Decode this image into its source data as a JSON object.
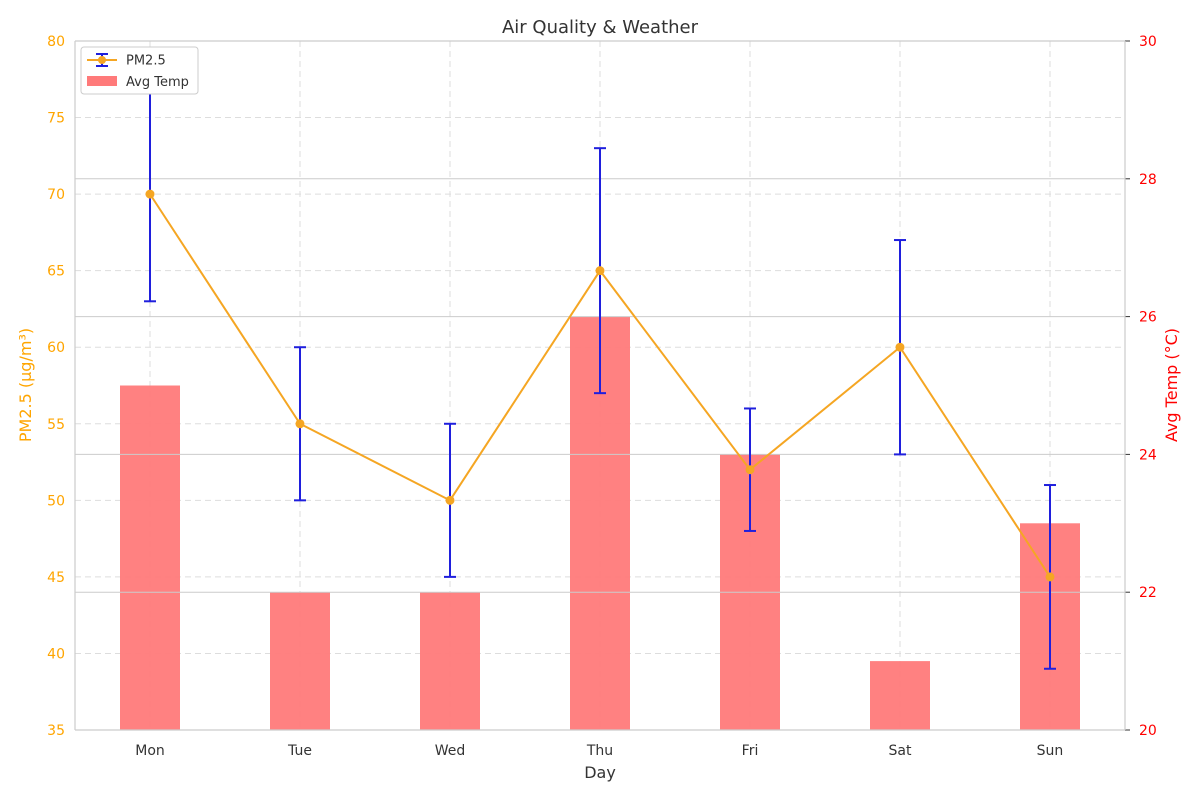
{
  "chart_data": {
    "type": "bar+line",
    "title": "Air Quality & Weather",
    "xlabel": "Day",
    "ylabel_left": "PM2.5 (µg/m³)",
    "ylabel_right": "Avg Temp (°C)",
    "categories": [
      "Mon",
      "Tue",
      "Wed",
      "Thu",
      "Fri",
      "Sat",
      "Sun"
    ],
    "ylim_left": [
      35,
      80
    ],
    "yticks_left": [
      "35",
      "40",
      "45",
      "50",
      "55",
      "60",
      "65",
      "70",
      "75",
      "80"
    ],
    "ylim_right": [
      20,
      30
    ],
    "yticks_right": [
      "20",
      "22",
      "24",
      "26",
      "28",
      "30"
    ],
    "grid": true,
    "legend_position": "top-left",
    "series": [
      {
        "name": "PM2.5",
        "kind": "line",
        "axis": "left",
        "values": [
          70,
          55,
          50,
          65,
          52,
          60,
          45
        ],
        "error_low": [
          63,
          50,
          45,
          57,
          48,
          53,
          39
        ],
        "error_high": [
          77,
          60,
          55,
          73,
          56,
          67,
          51
        ],
        "color": "#f5a623",
        "error_color": "#1f1fdd"
      },
      {
        "name": "Avg Temp",
        "kind": "bar",
        "axis": "right",
        "values": [
          25,
          22,
          22,
          26,
          24,
          21,
          23
        ],
        "color": "#ff7a7a"
      }
    ],
    "colors": {
      "left_axis": "#ffa500",
      "right_axis": "#ff0000",
      "grid": "#dddddd"
    }
  }
}
